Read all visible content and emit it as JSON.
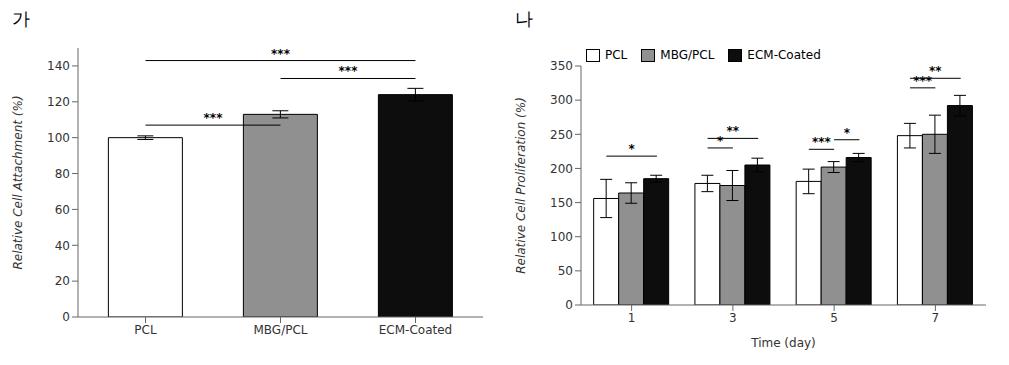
{
  "chart_data": [
    {
      "type": "bar",
      "title": "가",
      "y_label": "Relative Cell Attachment (%)",
      "categories": [
        "PCL",
        "MBG/PCL",
        "ECM-Coated"
      ],
      "values": [
        100,
        113,
        124
      ],
      "errors": [
        1.0,
        2.0,
        3.5
      ],
      "colors": [
        "#ffffff",
        "#909090",
        "#0d0d0d"
      ],
      "ylim": [
        0,
        150
      ],
      "yticks": [
        0,
        20,
        40,
        60,
        80,
        100,
        120,
        140
      ],
      "annotations": [
        {
          "from": "PCL",
          "to": "MBG/PCL",
          "y": 107,
          "text": "***"
        },
        {
          "from": "PCL",
          "to": "ECM-Coated",
          "y": 143,
          "text": "***"
        },
        {
          "from": "MBG/PCL",
          "to": "ECM-Coated",
          "y": 133,
          "text": "***"
        }
      ]
    },
    {
      "type": "bar",
      "title": "나",
      "x_label": "Time (day)",
      "y_label": "Relative Cell Proliferation (%)",
      "categories": [
        "1",
        "3",
        "5",
        "7"
      ],
      "series": [
        {
          "name": "PCL",
          "color": "#ffffff",
          "values": [
            156,
            178,
            181,
            248
          ],
          "errors": [
            28,
            12,
            18,
            18
          ]
        },
        {
          "name": "MBG/PCL",
          "color": "#909090",
          "values": [
            164,
            175,
            202,
            250
          ],
          "errors": [
            15,
            22,
            8,
            28
          ]
        },
        {
          "name": "ECM-Coated",
          "color": "#0d0d0d",
          "values": [
            185,
            205,
            216,
            292
          ],
          "errors": [
            5,
            10,
            6,
            15
          ]
        }
      ],
      "legend": "upper left",
      "ylim": [
        0,
        350
      ],
      "yticks": [
        0,
        50,
        100,
        150,
        200,
        250,
        300,
        350
      ],
      "annotations": [
        {
          "category": "1",
          "from": "PCL",
          "to": "ECM-Coated",
          "y": 218,
          "text": "*"
        },
        {
          "category": "3",
          "from": "PCL",
          "to": "MBG/PCL",
          "y": 230,
          "text": "*"
        },
        {
          "category": "3",
          "from": "PCL",
          "to": "ECM-Coated",
          "y": 244,
          "text": "**"
        },
        {
          "category": "5",
          "from": "PCL",
          "to": "MBG/PCL",
          "y": 228,
          "text": "***"
        },
        {
          "category": "5",
          "from": "MBG/PCL",
          "to": "ECM-Coated",
          "y": 242,
          "text": "*"
        },
        {
          "category": "7",
          "from": "PCL",
          "to": "MBG/PCL",
          "y": 318,
          "text": "***"
        },
        {
          "category": "7",
          "from": "PCL",
          "to": "ECM-Coated",
          "y": 332,
          "text": "**"
        }
      ]
    }
  ]
}
